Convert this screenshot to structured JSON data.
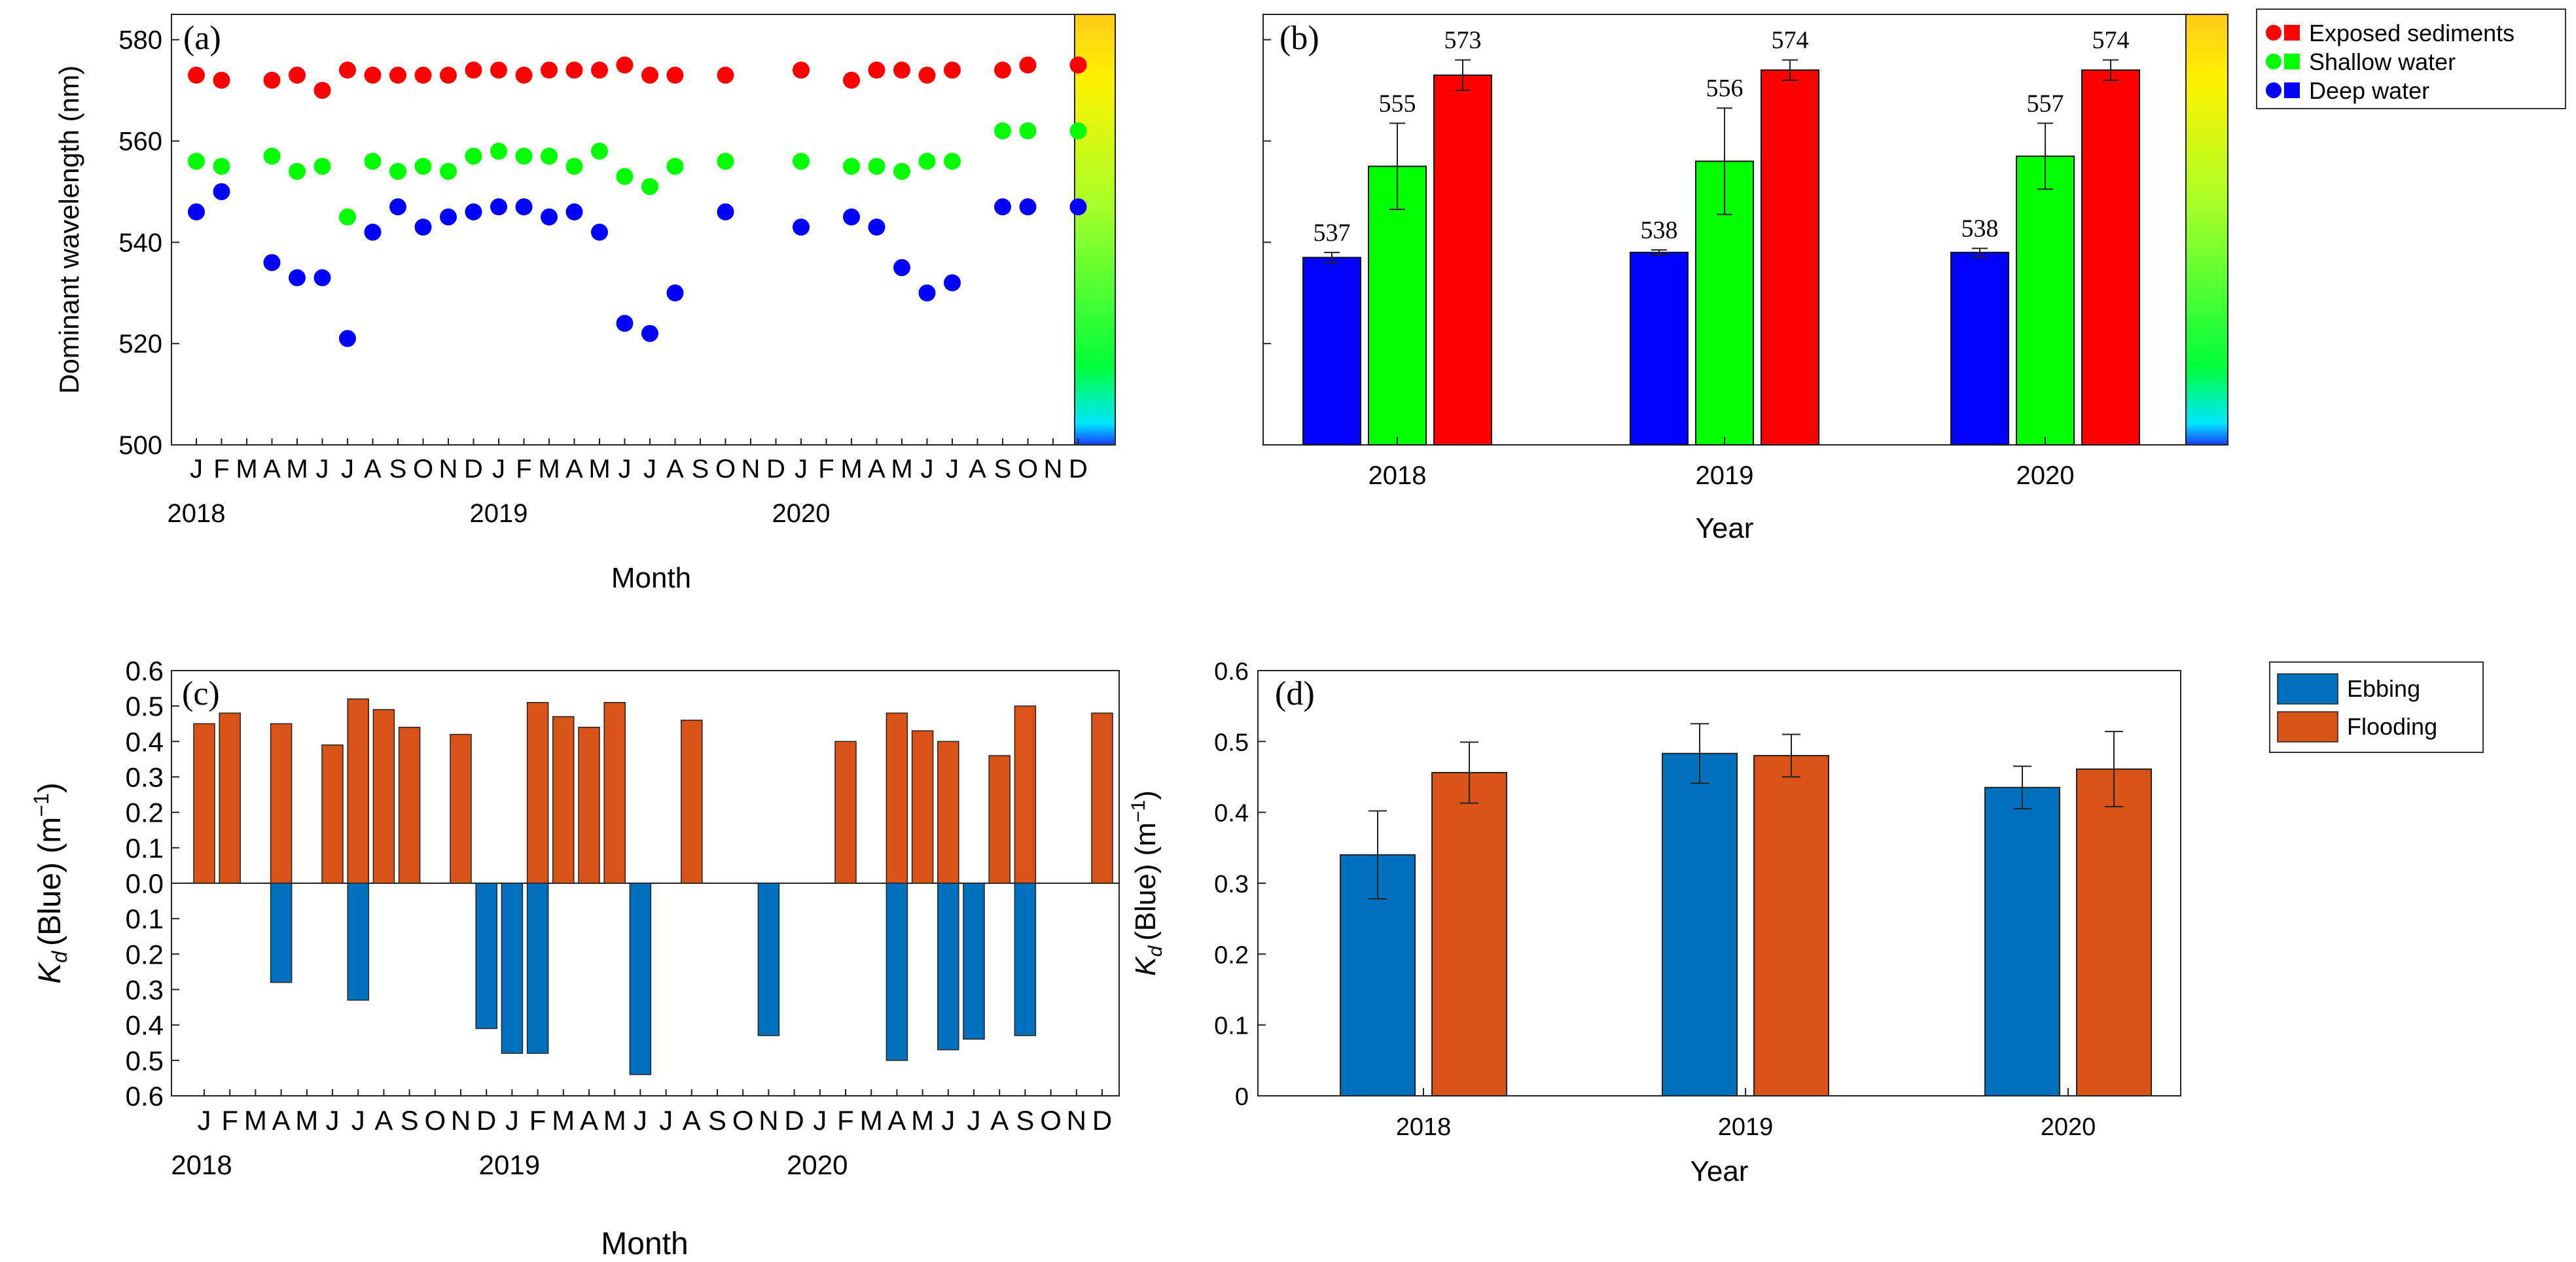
{
  "chart_data": [
    {
      "id": "a",
      "type": "scatter",
      "panel_label": "(a)",
      "xlabel": "Month",
      "ylabel": "Dominant wavelength (nm)",
      "ylim": [
        500,
        585
      ],
      "yticks": [
        500,
        520,
        540,
        560,
        580
      ],
      "xlim": [
        0,
        36
      ],
      "month_ticks": [
        "J",
        "F",
        "M",
        "A",
        "M",
        "J",
        "J",
        "A",
        "S",
        "O",
        "N",
        "D",
        "J",
        "F",
        "M",
        "A",
        "M",
        "J",
        "J",
        "A",
        "S",
        "O",
        "N",
        "D",
        "J",
        "F",
        "M",
        "A",
        "M",
        "J",
        "J",
        "A",
        "S",
        "O",
        "N",
        "D"
      ],
      "year_labels": [
        {
          "text": "2018",
          "x": 0
        },
        {
          "text": "2019",
          "x": 12
        },
        {
          "text": "2020",
          "x": 24
        }
      ],
      "colorbar": true,
      "series": [
        {
          "name": "Exposed sediments",
          "color": "#ff0000",
          "x": [
            0,
            1,
            3,
            4,
            5,
            6,
            7,
            8,
            9,
            10,
            11,
            12,
            13,
            14,
            15,
            16,
            17,
            18,
            19,
            21,
            24,
            26,
            27,
            28,
            29,
            30,
            32,
            33,
            35
          ],
          "y": [
            573,
            572,
            572,
            573,
            570,
            574,
            573,
            573,
            573,
            573,
            574,
            574,
            573,
            574,
            574,
            574,
            575,
            573,
            573,
            573,
            574,
            572,
            574,
            574,
            573,
            574,
            574,
            575,
            575
          ]
        },
        {
          "name": "Shallow water",
          "color": "#00ff00",
          "x": [
            0,
            1,
            3,
            4,
            5,
            6,
            7,
            8,
            9,
            10,
            11,
            12,
            13,
            14,
            15,
            16,
            17,
            18,
            19,
            21,
            24,
            26,
            27,
            28,
            29,
            30,
            32,
            33,
            35
          ],
          "y": [
            556,
            555,
            557,
            554,
            555,
            545,
            556,
            554,
            555,
            554,
            557,
            558,
            557,
            557,
            555,
            558,
            553,
            551,
            555,
            556,
            556,
            555,
            555,
            554,
            556,
            556,
            562,
            562,
            562
          ]
        },
        {
          "name": "Deep water",
          "color": "#0000ff",
          "x": [
            0,
            1,
            3,
            4,
            5,
            6,
            7,
            8,
            9,
            10,
            11,
            12,
            13,
            14,
            15,
            16,
            17,
            18,
            19,
            21,
            24,
            26,
            27,
            28,
            29,
            30,
            32,
            33,
            35
          ],
          "y": [
            546,
            550,
            536,
            533,
            533,
            521,
            542,
            547,
            543,
            545,
            546,
            547,
            547,
            545,
            546,
            542,
            524,
            522,
            530,
            546,
            543,
            545,
            543,
            535,
            530,
            532,
            547,
            547,
            547
          ]
        }
      ]
    },
    {
      "id": "b",
      "type": "bar",
      "panel_label": "(b)",
      "xlabel": "Year",
      "ylabel": "",
      "categories": [
        "2018",
        "2019",
        "2020"
      ],
      "ylim": [
        500,
        585
      ],
      "colorbar": true,
      "series": [
        {
          "name": "Deep water",
          "color": "#0000ff",
          "values": [
            537,
            538,
            538
          ],
          "errors": [
            1,
            0.5,
            0.8
          ],
          "labels": [
            "537",
            "538",
            "538"
          ]
        },
        {
          "name": "Shallow water",
          "color": "#00ff00",
          "values": [
            555,
            556,
            557
          ],
          "errors": [
            8.5,
            10.5,
            6.5
          ],
          "labels": [
            "555",
            "556",
            "557"
          ]
        },
        {
          "name": "Exposed sediments",
          "color": "#ff0000",
          "values": [
            573,
            574,
            574
          ],
          "errors": [
            3,
            2,
            2
          ],
          "labels": [
            "573",
            "574",
            "574"
          ]
        }
      ]
    },
    {
      "id": "c",
      "type": "bar",
      "panel_label": "(c)",
      "xlabel": "Month",
      "ylabel_main": "K",
      "ylabel_sub": "d",
      "ylabel_rest": "(Blue) (m",
      "ylabel_sup": "−1",
      "ylabel_close": ")",
      "ylim": [
        -0.6,
        0.6
      ],
      "yticks": [
        0.6,
        0.5,
        0.4,
        0.3,
        0.2,
        0.1,
        "0.0",
        0.1,
        0.2,
        0.3,
        0.4,
        0.5,
        0.6
      ],
      "month_ticks": [
        "J",
        "F",
        "M",
        "A",
        "M",
        "J",
        "J",
        "A",
        "S",
        "O",
        "N",
        "D",
        "J",
        "F",
        "M",
        "A",
        "M",
        "J",
        "J",
        "A",
        "S",
        "O",
        "N",
        "D",
        "J",
        "F",
        "M",
        "A",
        "M",
        "J",
        "J",
        "A",
        "S",
        "O",
        "N",
        "D"
      ],
      "year_labels": [
        {
          "text": "2018",
          "x": 0
        },
        {
          "text": "2019",
          "x": 12
        },
        {
          "text": "2020",
          "x": 24
        }
      ],
      "series": [
        {
          "name": "Flooding",
          "color": "#d95319",
          "x": [
            0,
            1,
            3,
            5,
            6,
            7,
            8,
            10,
            13,
            14,
            15,
            16,
            19,
            25,
            27,
            28,
            29,
            31,
            32,
            35
          ],
          "values": [
            0.45,
            0.48,
            0.45,
            0.39,
            0.52,
            0.49,
            0.44,
            0.42,
            0.51,
            0.47,
            0.44,
            0.51,
            0.46,
            0.4,
            0.48,
            0.43,
            0.4,
            0.36,
            0.5,
            0.48
          ]
        },
        {
          "name": "Ebbing",
          "color": "#0072bd",
          "x": [
            3,
            6,
            11,
            12,
            13,
            17,
            22,
            27,
            29,
            30,
            32
          ],
          "values": [
            0.28,
            0.33,
            0.41,
            0.48,
            0.48,
            0.54,
            0.43,
            0.5,
            0.47,
            0.44,
            0.43
          ]
        }
      ]
    },
    {
      "id": "d",
      "type": "bar",
      "panel_label": "(d)",
      "xlabel": "Year",
      "ylabel_main": "K",
      "ylabel_sub": "d",
      "ylabel_rest": "(Blue) (m",
      "ylabel_sup": "−1",
      "ylabel_close": ")",
      "categories": [
        "2018",
        "2019",
        "2020"
      ],
      "ylim": [
        0,
        0.6
      ],
      "yticks": [
        "0",
        "0.1",
        "0.2",
        "0.3",
        "0.4",
        "0.5",
        "0.6"
      ],
      "series": [
        {
          "name": "Ebbing",
          "color": "#0072bd",
          "values": [
            0.34,
            0.483,
            0.435
          ],
          "errors": [
            0.062,
            0.042,
            0.03
          ]
        },
        {
          "name": "Flooding",
          "color": "#d95319",
          "values": [
            0.456,
            0.48,
            0.461
          ],
          "errors": [
            0.043,
            0.03,
            0.053
          ]
        }
      ]
    }
  ],
  "legend_ab": {
    "items": [
      {
        "label": "Exposed sediments",
        "color": "#ff0000"
      },
      {
        "label": "Shallow water",
        "color": "#00ff00"
      },
      {
        "label": "Deep water",
        "color": "#0000ff"
      }
    ]
  },
  "legend_cd": {
    "items": [
      {
        "label": "Ebbing",
        "color": "#0072bd"
      },
      {
        "label": "Flooding",
        "color": "#d95319"
      }
    ]
  },
  "colorbar_stops": [
    "#1a3fff",
    "#00e5ff",
    "#00ff3c",
    "#a6ff2a",
    "#fff200",
    "#ffcc1a"
  ]
}
